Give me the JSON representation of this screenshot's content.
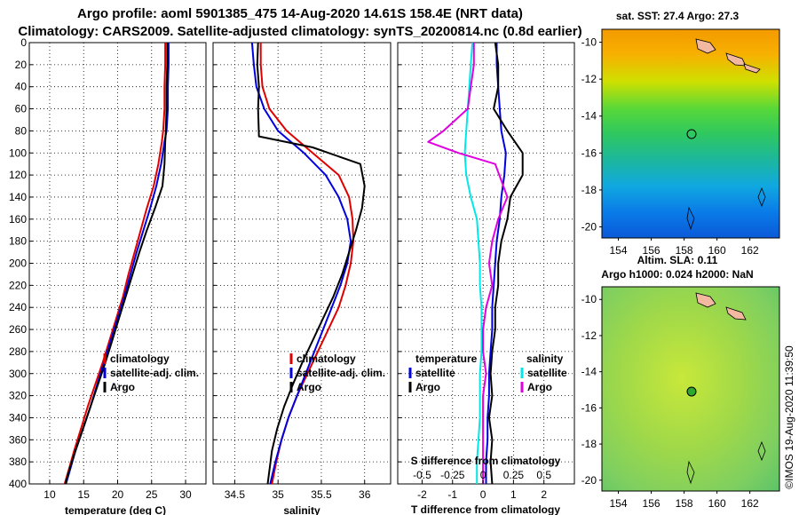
{
  "header": {
    "line1": "Argo profile: aoml 5901385_475 14-Aug-2020 14.61S 158.4E (NRT data)",
    "line2": "Climatology: CARS2009. Satellite-adjusted climatology: synTS_20200814.nc (0.8d earlier)"
  },
  "credit": "©IMOS 19-Aug-2020 11:39:50",
  "colors": {
    "climatology": "#e00000",
    "satellite": "#0000e0",
    "argo": "#000000",
    "temp_diff": "#000000",
    "temp_sat_diff": "#0000e0",
    "sal_sat_diff": "#00e8e8",
    "sal_argo_diff": "#e000e0"
  },
  "chart_data": [
    {
      "type": "line",
      "title": "",
      "xlabel": "temperature (deg C)",
      "ylabel": "",
      "xlim": [
        7,
        33
      ],
      "ylim": [
        400,
        0
      ],
      "xticks": [
        10,
        15,
        20,
        25,
        30
      ],
      "yticks": [
        0,
        20,
        40,
        60,
        80,
        100,
        120,
        140,
        160,
        180,
        200,
        220,
        240,
        260,
        280,
        300,
        320,
        340,
        360,
        380,
        400
      ],
      "legend": [
        "climatology",
        "satellite-adj. clim.",
        "Argo"
      ],
      "series": [
        {
          "name": "climatology",
          "color": "#e00000",
          "x": [
            27.0,
            27.0,
            26.9,
            26.9,
            26.7,
            26.5,
            26.0,
            25.3,
            24.3,
            23.4,
            22.5,
            21.6,
            20.8,
            19.8,
            18.8,
            17.8,
            16.7,
            15.6,
            14.6,
            13.6,
            12.9,
            12.2
          ],
          "y": [
            0,
            20,
            40,
            60,
            80,
            90,
            110,
            130,
            150,
            170,
            190,
            210,
            230,
            250,
            270,
            290,
            310,
            330,
            350,
            370,
            385,
            400
          ]
        },
        {
          "name": "satellite-adj. clim.",
          "color": "#0000e0",
          "x": [
            27.5,
            27.5,
            27.4,
            27.4,
            27.2,
            26.9,
            26.4,
            25.7,
            24.8,
            23.8,
            22.8,
            21.9,
            21.0,
            20.0,
            19.0,
            18.0,
            17.0,
            16.0,
            14.9,
            13.8,
            13.1,
            12.4
          ],
          "y": [
            0,
            20,
            40,
            60,
            80,
            90,
            110,
            130,
            150,
            170,
            190,
            210,
            230,
            250,
            270,
            290,
            310,
            330,
            350,
            370,
            385,
            400
          ]
        },
        {
          "name": "Argo",
          "color": "#000000",
          "x": [
            27.3,
            27.3,
            27.2,
            27.2,
            27.1,
            27.0,
            26.9,
            26.6,
            25.5,
            24.3,
            23.2,
            22.2,
            21.2,
            20.2,
            19.2,
            18.2,
            17.1,
            16.0,
            14.9,
            13.8,
            13.0,
            12.3
          ],
          "y": [
            0,
            20,
            40,
            60,
            80,
            90,
            110,
            130,
            150,
            170,
            190,
            210,
            230,
            250,
            270,
            290,
            310,
            330,
            350,
            370,
            385,
            400
          ]
        }
      ]
    },
    {
      "type": "line",
      "title": "",
      "xlabel": "salinity",
      "ylabel": "",
      "xlim": [
        34.25,
        36.3
      ],
      "ylim": [
        400,
        0
      ],
      "xticks": [
        34.5,
        35,
        35.5,
        36
      ],
      "xticklabels": [
        "34.5",
        "35",
        "35.5",
        "36"
      ],
      "legend": [
        "climatology",
        "satellite-adj. clim.",
        "Argo"
      ],
      "series": [
        {
          "name": "climatology",
          "color": "#e00000",
          "x": [
            34.8,
            34.8,
            34.82,
            34.9,
            35.1,
            35.4,
            35.7,
            35.82,
            35.86,
            35.87,
            35.84,
            35.78,
            35.7,
            35.58,
            35.46,
            35.34,
            35.22,
            35.12,
            35.04,
            34.98,
            34.93
          ],
          "y": [
            0,
            20,
            40,
            60,
            80,
            100,
            120,
            140,
            160,
            180,
            200,
            220,
            240,
            260,
            280,
            300,
            320,
            340,
            360,
            380,
            400
          ]
        },
        {
          "name": "satellite-adj. clim.",
          "color": "#0000e0",
          "x": [
            34.7,
            34.72,
            34.75,
            34.84,
            35.0,
            35.3,
            35.55,
            35.7,
            35.8,
            35.84,
            35.8,
            35.72,
            35.62,
            35.52,
            35.42,
            35.32,
            35.22,
            35.12,
            35.04,
            34.97,
            34.91
          ],
          "y": [
            0,
            20,
            40,
            60,
            80,
            100,
            120,
            140,
            160,
            180,
            200,
            220,
            240,
            260,
            280,
            300,
            320,
            340,
            360,
            380,
            400
          ]
        },
        {
          "name": "Argo",
          "color": "#000000",
          "x": [
            34.77,
            34.76,
            34.78,
            34.77,
            34.78,
            35.4,
            35.95,
            36.0,
            35.97,
            35.9,
            35.82,
            35.74,
            35.64,
            35.52,
            35.4,
            35.28,
            35.17,
            35.07,
            34.99,
            34.93,
            34.88
          ],
          "y": [
            0,
            20,
            40,
            60,
            85,
            95,
            110,
            130,
            150,
            170,
            190,
            210,
            230,
            250,
            270,
            290,
            310,
            330,
            350,
            370,
            400
          ]
        }
      ]
    },
    {
      "type": "line",
      "title": "",
      "xlabel": "T difference from climatology",
      "xlabel2": "S difference from climatology",
      "ylabel": "",
      "xlim": [
        -2.8,
        3.0
      ],
      "ylim": [
        400,
        0
      ],
      "xticks": [
        -2,
        -1,
        0,
        1,
        2
      ],
      "xticklabels": [
        "-2",
        "-1",
        "0",
        "1",
        "2"
      ],
      "xticks2_pos": [
        -2,
        -1,
        0,
        1,
        2
      ],
      "xticklabels2": [
        "-0.5",
        "-0.25",
        "0",
        "0.25",
        "0.5"
      ],
      "legend_left_title": "temperature",
      "legend_right_title": "salinity",
      "legend": [
        "satellite",
        "Argo",
        "satellite",
        "Argo"
      ],
      "series": [
        {
          "name": "temperature satellite",
          "color": "#0000e0",
          "x": [
            0.45,
            0.45,
            0.5,
            0.55,
            0.6,
            0.75,
            0.7,
            0.6,
            0.55,
            0.45,
            0.4,
            0.35,
            0.3,
            0.3,
            0.25,
            0.2,
            0.2,
            0.15,
            0.15,
            0.1,
            0.1
          ],
          "y": [
            0,
            20,
            40,
            60,
            80,
            100,
            120,
            140,
            160,
            180,
            200,
            220,
            240,
            260,
            280,
            300,
            320,
            340,
            360,
            380,
            400
          ]
        },
        {
          "name": "temperature Argo",
          "color": "#000000",
          "x": [
            0.4,
            0.5,
            0.5,
            0.35,
            0.8,
            1.3,
            1.3,
            0.9,
            0.8,
            0.6,
            0.5,
            0.5,
            0.4,
            0.4,
            0.3,
            0.25,
            0.3,
            0.2,
            0.3,
            0.25,
            0.3
          ],
          "y": [
            0,
            20,
            40,
            60,
            80,
            100,
            120,
            140,
            160,
            180,
            200,
            220,
            240,
            260,
            280,
            300,
            320,
            340,
            360,
            380,
            400
          ]
        },
        {
          "name": "salinity satellite",
          "color": "#00e8e8",
          "x": [
            -0.35,
            -0.4,
            -0.45,
            -0.5,
            -0.55,
            -0.6,
            -0.55,
            -0.4,
            -0.2,
            -0.15,
            -0.1,
            -0.1,
            -0.05,
            -0.05,
            -0.05,
            -0.1,
            -0.1,
            -0.1,
            -0.15,
            -0.2,
            -0.2
          ],
          "y": [
            0,
            20,
            40,
            60,
            80,
            100,
            120,
            140,
            160,
            180,
            200,
            220,
            240,
            260,
            280,
            300,
            320,
            340,
            360,
            380,
            400
          ]
        },
        {
          "name": "salinity Argo",
          "color": "#e000e0",
          "x": [
            -0.3,
            -0.3,
            -0.4,
            -0.5,
            -1.3,
            -1.8,
            -0.8,
            0.4,
            0.8,
            0.5,
            0.3,
            0.2,
            0.3,
            0.1,
            0.0,
            0.0,
            0.1,
            0.0,
            0.0,
            0.0,
            0.0
          ],
          "y": [
            0,
            20,
            40,
            60,
            80,
            90,
            100,
            110,
            140,
            160,
            180,
            200,
            220,
            240,
            260,
            280,
            300,
            320,
            340,
            360,
            400
          ]
        }
      ]
    },
    {
      "type": "heatmap",
      "title": "sat. SST: 27.4 Argo: 27.3",
      "xlabel": "",
      "ylabel": "",
      "xlim": [
        153,
        163.8
      ],
      "ylim": [
        -20.6,
        -9.3
      ],
      "xticks": [
        154,
        156,
        158,
        160,
        162
      ],
      "yticks": [
        -10,
        -12,
        -14,
        -16,
        -18,
        -20
      ],
      "marker": {
        "lon": 158.4,
        "lat": -14.6
      }
    },
    {
      "type": "heatmap",
      "title": "Altim. SLA: 0.11",
      "subtitle": "Argo h1000: 0.024 h2000: NaN",
      "xlabel": "",
      "ylabel": "",
      "xlim": [
        153,
        163.8
      ],
      "ylim": [
        -20.6,
        -9.3
      ],
      "xticks": [
        154,
        156,
        158,
        160,
        162
      ],
      "yticks": [
        -10,
        -12,
        -14,
        -16,
        -18,
        -20
      ],
      "marker": {
        "lon": 158.4,
        "lat": -14.6
      }
    }
  ]
}
